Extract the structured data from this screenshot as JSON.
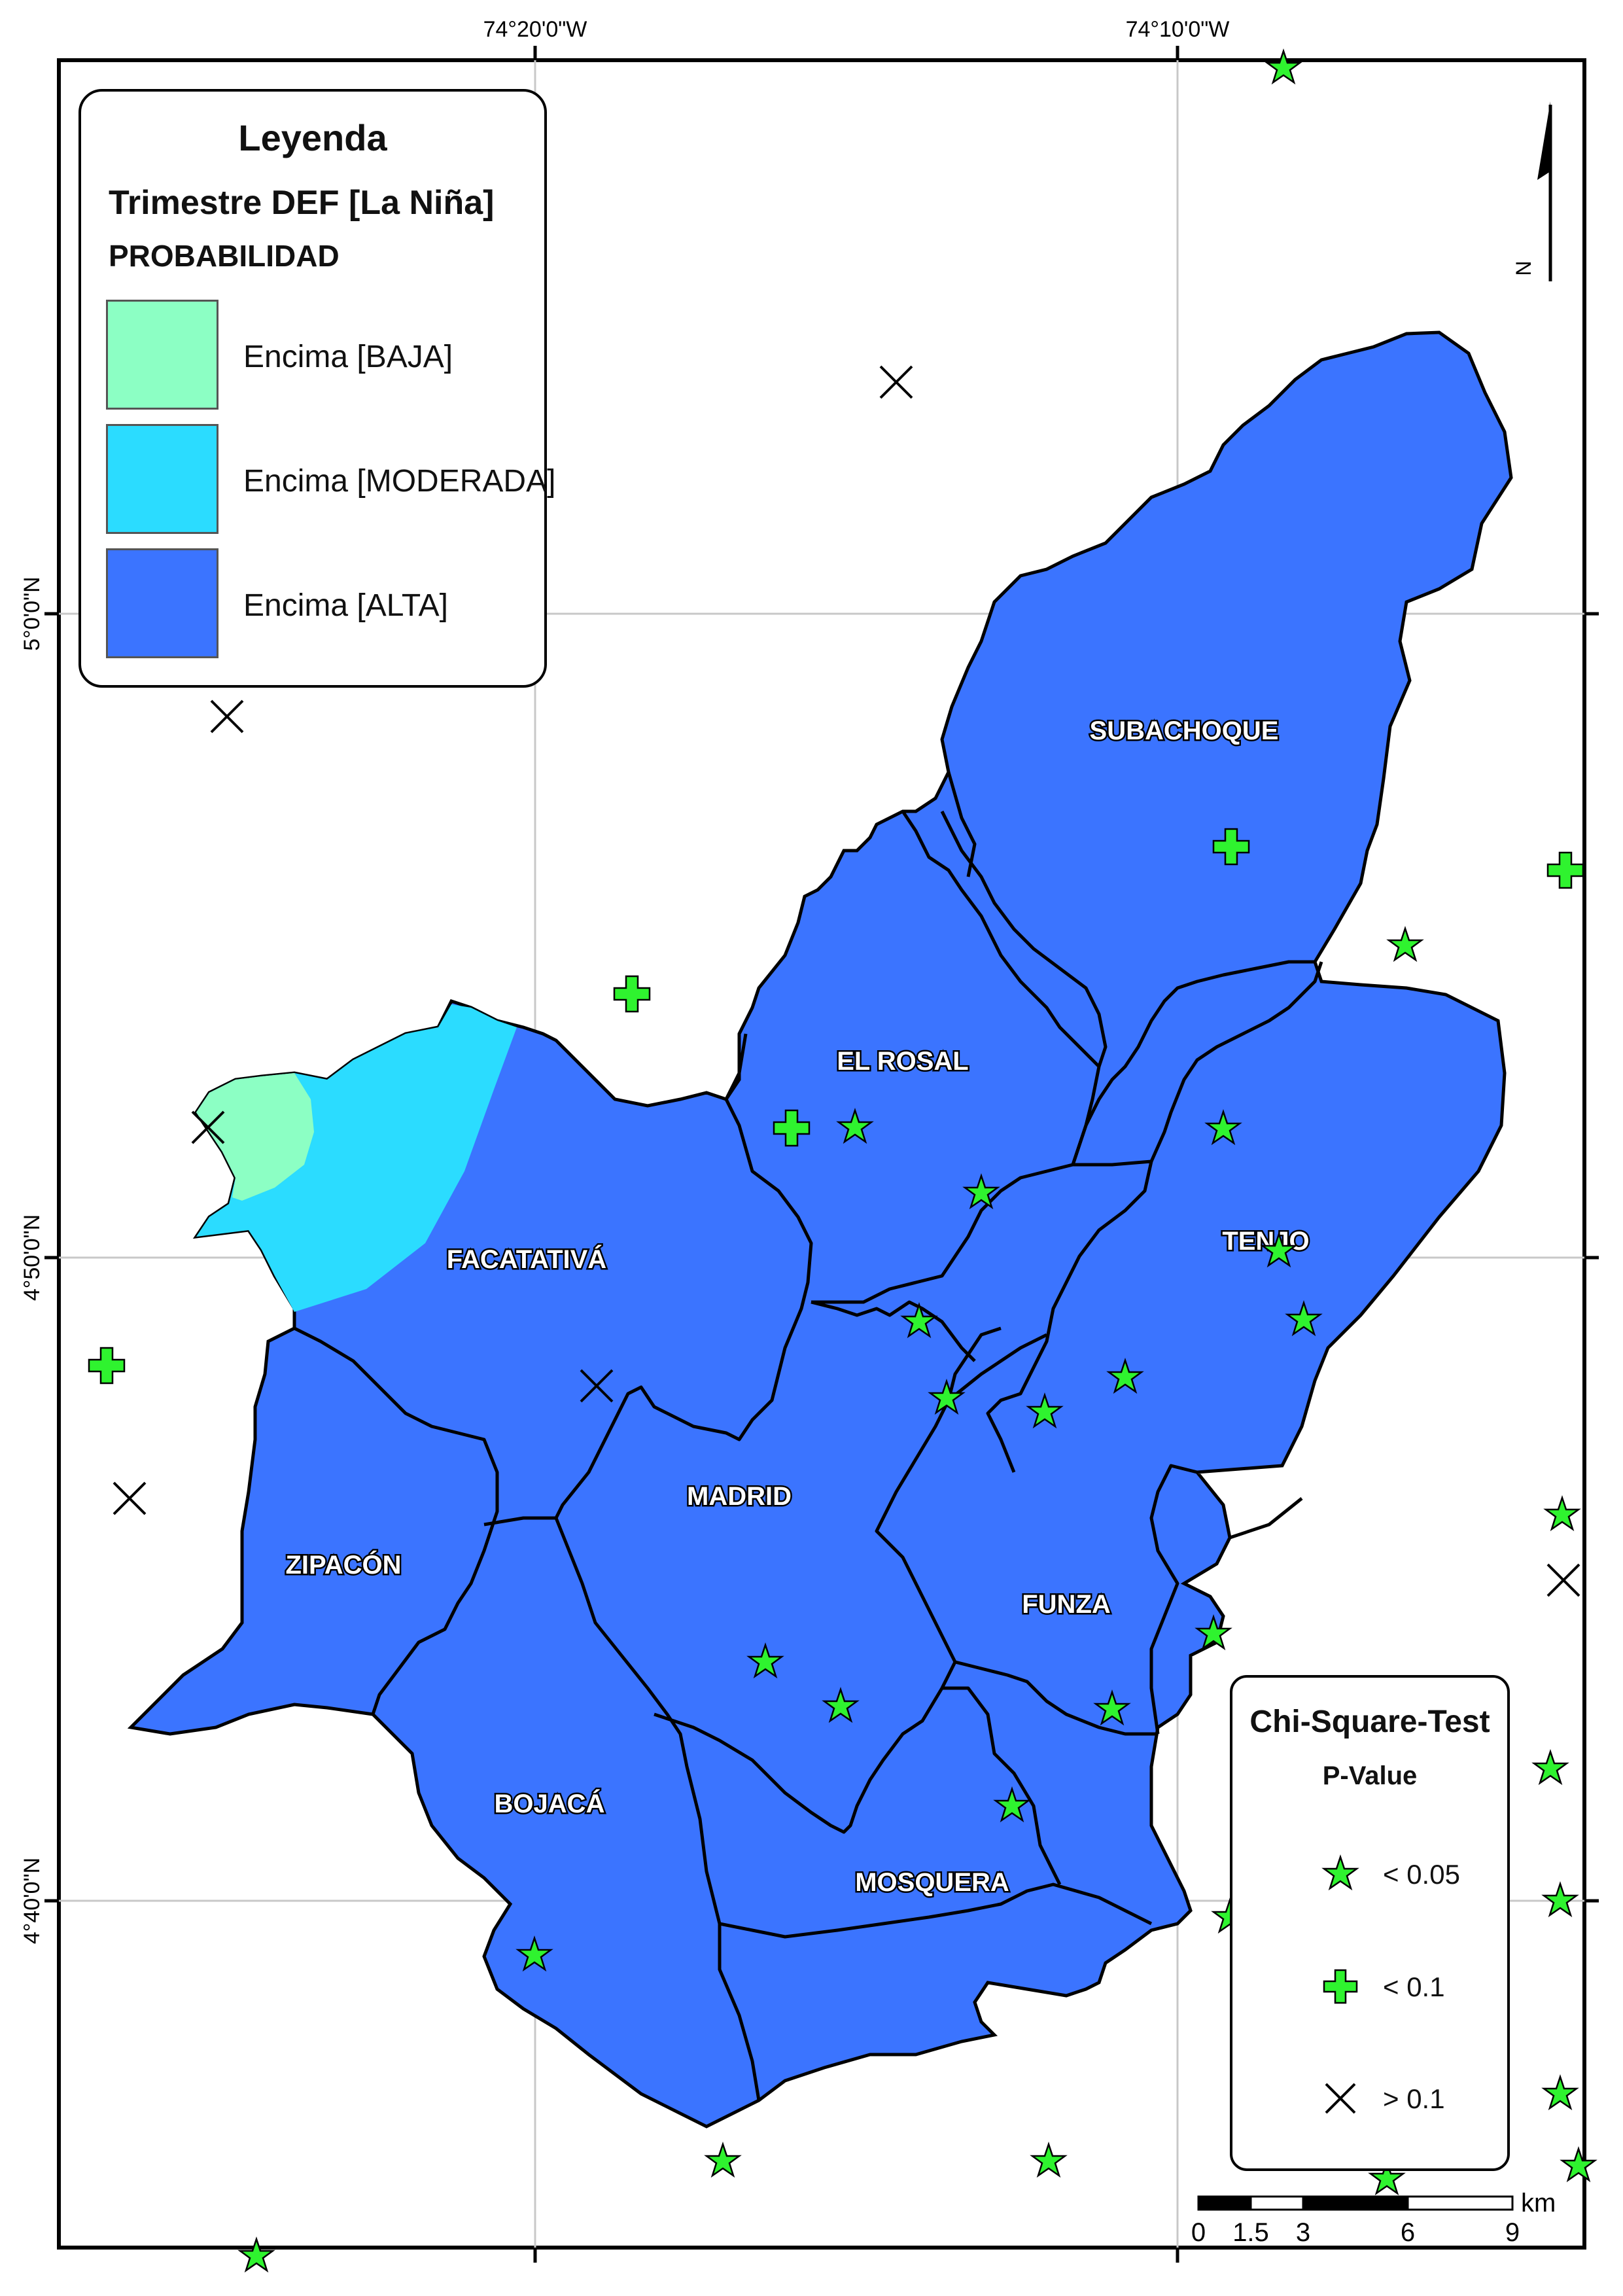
{
  "grid": {
    "lon_labels": [
      "74°20'0\"W",
      "74°10'0\"W"
    ],
    "lat_labels": [
      "5°0'0\"N",
      "4°50'0\"N",
      "4°40'0\"N"
    ]
  },
  "legend": {
    "title": "Leyenda",
    "subtitle": "Trimestre DEF [La Niña]",
    "variable": "PROBABILIDAD",
    "items": [
      {
        "label": "Encima [BAJA]",
        "color": "#8cffc4"
      },
      {
        "label": "Encima [MODERADA]",
        "color": "#2bdcff"
      },
      {
        "label": "Encima [ALTA]",
        "color": "#3b74ff"
      }
    ]
  },
  "chi_legend": {
    "title": "Chi-Square-Test",
    "subtitle": "P-Value",
    "items": [
      {
        "symbol": "star-icon",
        "label": "< 0.05",
        "color": "#2ff32f"
      },
      {
        "symbol": "plus-icon",
        "label": "< 0.1",
        "color": "#2ff32f"
      },
      {
        "symbol": "x-icon",
        "label": "> 0.1",
        "color": "#000000"
      }
    ]
  },
  "municipalities": [
    "SUBACHOQUE",
    "EL ROSAL",
    "TENJO",
    "FACATATIVÁ",
    "MADRID",
    "ZIPACÓN",
    "FUNZA",
    "BOJACÁ",
    "MOSQUERA"
  ],
  "north_arrow": {
    "label": "N"
  },
  "scale_bar": {
    "labels": [
      "0",
      "1.5",
      "3",
      "6",
      "9"
    ],
    "unit": "km"
  }
}
